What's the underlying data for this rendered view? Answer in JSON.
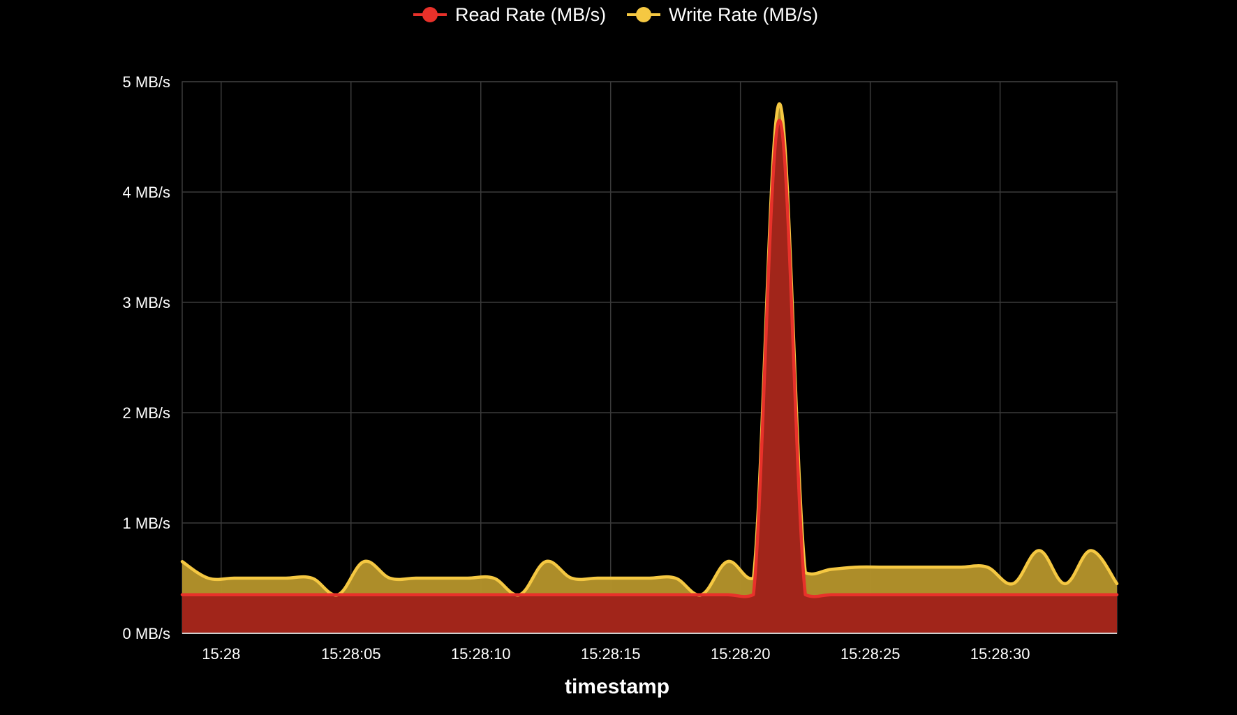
{
  "chart_data": {
    "type": "area",
    "xlabel": "timestamp",
    "ylabel": "",
    "ylim": [
      0,
      5
    ],
    "xlim": [
      "15:27:58.5",
      "15:28:34.5"
    ],
    "grid": true,
    "legend_position": "top-center",
    "y_ticks": [
      {
        "value": 0,
        "label": "0 MB/s"
      },
      {
        "value": 1,
        "label": "1 MB/s"
      },
      {
        "value": 2,
        "label": "2 MB/s"
      },
      {
        "value": 3,
        "label": "3 MB/s"
      },
      {
        "value": 4,
        "label": "4 MB/s"
      },
      {
        "value": 5,
        "label": "5 MB/s"
      }
    ],
    "x_ticks": [
      {
        "value": "15:28:00",
        "label": "15:28"
      },
      {
        "value": "15:28:05",
        "label": "15:28:05"
      },
      {
        "value": "15:28:10",
        "label": "15:28:10"
      },
      {
        "value": "15:28:15",
        "label": "15:28:15"
      },
      {
        "value": "15:28:20",
        "label": "15:28:20"
      },
      {
        "value": "15:28:25",
        "label": "15:28:25"
      },
      {
        "value": "15:28:30",
        "label": "15:28:30"
      }
    ],
    "x": [
      "15:27:58.5",
      "15:27:59.5",
      "15:28:00.5",
      "15:28:01.5",
      "15:28:02.5",
      "15:28:03.5",
      "15:28:04.5",
      "15:28:05.5",
      "15:28:06.5",
      "15:28:07.5",
      "15:28:08.5",
      "15:28:09.5",
      "15:28:10.5",
      "15:28:11.5",
      "15:28:12.5",
      "15:28:13.5",
      "15:28:14.5",
      "15:28:15.5",
      "15:28:16.5",
      "15:28:17.5",
      "15:28:18.5",
      "15:28:19.5",
      "15:28:20.5",
      "15:28:21.5",
      "15:28:22.5",
      "15:28:23.5",
      "15:28:24.5",
      "15:28:25.5",
      "15:28:26.5",
      "15:28:27.5",
      "15:28:28.5",
      "15:28:29.5",
      "15:28:30.5",
      "15:28:31.5",
      "15:28:32.5",
      "15:28:33.5",
      "15:28:34.5"
    ],
    "series": [
      {
        "name": "Read Rate (MB/s)",
        "color": "#e8312a",
        "fill": "#a0231b",
        "values": [
          0.35,
          0.35,
          0.35,
          0.35,
          0.35,
          0.35,
          0.35,
          0.35,
          0.35,
          0.35,
          0.35,
          0.35,
          0.35,
          0.35,
          0.35,
          0.35,
          0.35,
          0.35,
          0.35,
          0.35,
          0.35,
          0.35,
          0.35,
          4.65,
          0.35,
          0.35,
          0.35,
          0.35,
          0.35,
          0.35,
          0.35,
          0.35,
          0.35,
          0.35,
          0.35,
          0.35,
          0.35
        ]
      },
      {
        "name": "Write Rate (MB/s)",
        "color": "#f5c842",
        "fill": "#b0902a",
        "values": [
          0.65,
          0.5,
          0.5,
          0.5,
          0.5,
          0.5,
          0.35,
          0.65,
          0.5,
          0.5,
          0.5,
          0.5,
          0.5,
          0.35,
          0.65,
          0.5,
          0.5,
          0.5,
          0.5,
          0.5,
          0.35,
          0.65,
          0.5,
          4.8,
          0.55,
          0.58,
          0.6,
          0.6,
          0.6,
          0.6,
          0.6,
          0.6,
          0.45,
          0.75,
          0.45,
          0.75,
          0.45
        ]
      }
    ]
  }
}
